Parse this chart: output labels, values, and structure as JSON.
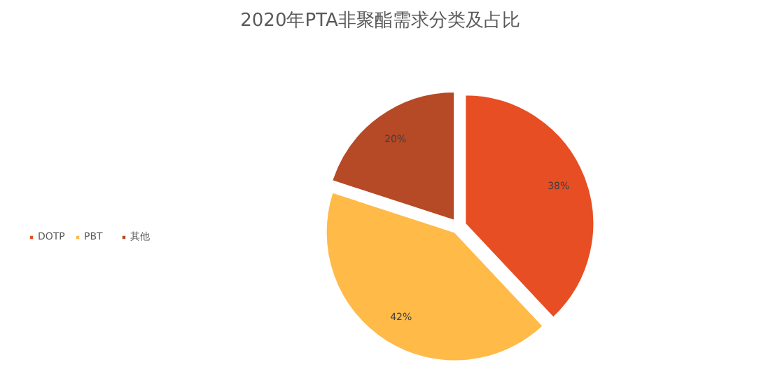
{
  "chart_data": {
    "type": "pie",
    "title": "2020年PTA非聚酯需求分类及占比",
    "categories": [
      "DOTP",
      "PBT",
      "其他"
    ],
    "values": [
      38,
      42,
      20
    ],
    "colors": [
      "#e84e23",
      "#ffba47",
      "#b64926"
    ],
    "value_labels": [
      "38%",
      "42%",
      "20%"
    ],
    "legend": "left"
  }
}
